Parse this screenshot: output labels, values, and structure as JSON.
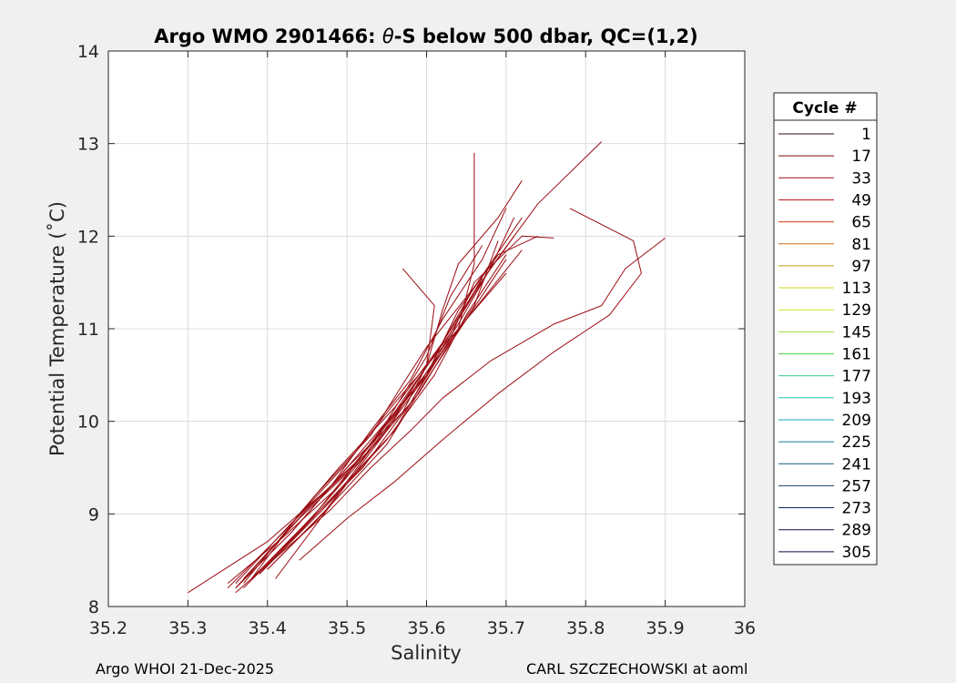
{
  "chart_data": {
    "type": "line",
    "title_prefix": "Argo WMO 2901466: ",
    "title_symbol": "θ",
    "title_suffix": "-S below 500 dbar,  QC=(1,2)",
    "xlabel": "Salinity",
    "ylabel": "Potential Temperature (˚C)",
    "xlim": [
      35.2,
      36.0
    ],
    "ylim": [
      8,
      14
    ],
    "x_ticks": [
      "35.2",
      "35.3",
      "35.4",
      "35.5",
      "35.6",
      "35.7",
      "35.8",
      "35.9",
      "36"
    ],
    "y_ticks": [
      "8",
      "9",
      "10",
      "11",
      "12",
      "13",
      "14"
    ],
    "grid": true,
    "legend_title": "Cycle #",
    "legend_position": "outside-right",
    "legend": [
      {
        "label": "1",
        "color": "#300808"
      },
      {
        "label": "17",
        "color": "#7a0a10"
      },
      {
        "label": "33",
        "color": "#a00d13"
      },
      {
        "label": "49",
        "color": "#bf1a17"
      },
      {
        "label": "65",
        "color": "#d33a15"
      },
      {
        "label": "81",
        "color": "#d86a10"
      },
      {
        "label": "97",
        "color": "#c8a014"
      },
      {
        "label": "113",
        "color": "#d6d61c"
      },
      {
        "label": "129",
        "color": "#c8e628"
      },
      {
        "label": "145",
        "color": "#96e036"
      },
      {
        "label": "161",
        "color": "#58d64a"
      },
      {
        "label": "177",
        "color": "#2fd08a"
      },
      {
        "label": "193",
        "color": "#22c6b4"
      },
      {
        "label": "209",
        "color": "#19a8be"
      },
      {
        "label": "225",
        "color": "#157e9c"
      },
      {
        "label": "241",
        "color": "#145e80"
      },
      {
        "label": "257",
        "color": "#143e66"
      },
      {
        "label": "273",
        "color": "#12245a"
      },
      {
        "label": "289",
        "color": "#0c1450"
      },
      {
        "label": "305",
        "color": "#080c48"
      }
    ],
    "series": [
      {
        "name": "1",
        "color": "#300808",
        "x": [
          35.36,
          35.42,
          35.48,
          35.53,
          35.58,
          35.62,
          35.68,
          35.76,
          35.82,
          35.85,
          35.9
        ],
        "y": [
          8.15,
          8.6,
          9.05,
          9.5,
          9.9,
          10.25,
          10.65,
          11.05,
          11.25,
          11.65,
          11.98
        ]
      },
      {
        "name": "17",
        "color": "#7a0a10",
        "x": [
          35.44,
          35.5,
          35.56,
          35.62,
          35.69,
          35.76,
          35.83,
          35.87,
          35.86,
          35.78
        ],
        "y": [
          8.5,
          8.95,
          9.35,
          9.8,
          10.3,
          10.75,
          11.15,
          11.6,
          11.95,
          12.3
        ]
      },
      {
        "name": "33",
        "color": "#a00d13",
        "x": [
          35.37,
          35.44,
          35.5,
          35.56,
          35.6,
          35.64,
          35.68,
          35.74,
          35.82
        ],
        "y": [
          8.2,
          8.8,
          9.35,
          9.9,
          10.5,
          11.1,
          11.65,
          12.35,
          13.02
        ]
      },
      {
        "name": "49",
        "color": "#bf1a17",
        "x": [
          35.3,
          35.4,
          35.48,
          35.53,
          35.58,
          35.62,
          35.67,
          35.7
        ],
        "y": [
          8.15,
          8.7,
          9.3,
          9.9,
          10.45,
          11.1,
          11.75,
          12.3
        ]
      },
      {
        "name": "65",
        "color": "#d33a15",
        "x": [
          35.36,
          35.43,
          35.5,
          35.57,
          35.6,
          35.62,
          35.64,
          35.69,
          35.72
        ],
        "y": [
          8.2,
          8.8,
          9.5,
          10.1,
          10.6,
          11.2,
          11.7,
          12.2,
          12.6
        ]
      },
      {
        "name": "81",
        "color": "#d86a10",
        "x": [
          35.38,
          35.45,
          35.52,
          35.58,
          35.63,
          35.66,
          35.72,
          35.76
        ],
        "y": [
          8.3,
          8.9,
          9.5,
          10.2,
          10.9,
          11.5,
          12.0,
          11.98
        ]
      },
      {
        "name": "97",
        "color": "#c8a014",
        "x": [
          35.4,
          35.47,
          35.53,
          35.59,
          35.64,
          35.66,
          35.66
        ],
        "y": [
          8.4,
          9.0,
          9.7,
          10.3,
          11.0,
          11.7,
          12.9
        ]
      },
      {
        "name": "113",
        "color": "#d6d61c",
        "x": [
          35.41,
          35.48,
          35.55,
          35.6,
          35.61,
          35.57
        ],
        "y": [
          8.3,
          9.1,
          9.9,
          10.6,
          11.25,
          11.65
        ]
      },
      {
        "name": "129",
        "color": "#c8e628",
        "x": [
          35.35,
          35.42,
          35.49,
          35.55,
          35.6,
          35.64,
          35.69,
          35.74
        ],
        "y": [
          8.25,
          8.75,
          9.3,
          10.0,
          10.5,
          11.2,
          11.8,
          12.0
        ]
      },
      {
        "name": "145",
        "color": "#96e036",
        "x": [
          35.36,
          35.43,
          35.49,
          35.55,
          35.6,
          35.63,
          35.67
        ],
        "y": [
          8.2,
          8.8,
          9.4,
          10.0,
          10.7,
          11.35,
          11.9
        ]
      },
      {
        "name": "161",
        "color": "#58d64a",
        "x": [
          35.38,
          35.44,
          35.49,
          35.56,
          35.62,
          35.66,
          35.71
        ],
        "y": [
          8.3,
          9.0,
          9.5,
          10.15,
          10.85,
          11.4,
          12.0
        ]
      },
      {
        "name": "177",
        "color": "#2fd08a",
        "x": [
          35.37,
          35.46,
          35.53,
          35.57,
          35.6,
          35.66,
          35.72
        ],
        "y": [
          8.25,
          9.2,
          9.85,
          10.4,
          10.8,
          11.45,
          12.2
        ]
      },
      {
        "name": "193",
        "color": "#22c6b4",
        "x": [
          35.35,
          35.42,
          35.5,
          35.56,
          35.63,
          35.7
        ],
        "y": [
          8.2,
          8.8,
          9.55,
          10.2,
          10.9,
          11.6
        ]
      },
      {
        "name": "209",
        "color": "#19a8be",
        "x": [
          35.4,
          35.48,
          35.55,
          35.6,
          35.65,
          35.72
        ],
        "y": [
          8.4,
          9.1,
          9.75,
          10.45,
          11.1,
          11.85
        ]
      },
      {
        "name": "225",
        "color": "#157e9c",
        "x": [
          35.37,
          35.45,
          35.53,
          35.58,
          35.65,
          35.7
        ],
        "y": [
          8.3,
          9.05,
          9.7,
          10.3,
          11.1,
          11.75
        ]
      },
      {
        "name": "241",
        "color": "#145e80",
        "x": [
          35.39,
          35.47,
          35.54,
          35.6,
          35.66,
          35.69
        ],
        "y": [
          8.35,
          9.1,
          9.8,
          10.5,
          11.25,
          11.95
        ]
      },
      {
        "name": "257",
        "color": "#143e66",
        "x": [
          35.36,
          35.44,
          35.52,
          35.58,
          35.63,
          35.67
        ],
        "y": [
          8.2,
          8.95,
          9.6,
          10.35,
          10.95,
          11.55
        ]
      },
      {
        "name": "273",
        "color": "#12245a",
        "x": [
          35.38,
          35.46,
          35.53,
          35.59,
          35.64,
          35.68,
          35.71
        ],
        "y": [
          8.3,
          9.0,
          9.75,
          10.4,
          11.05,
          11.65,
          12.2
        ]
      },
      {
        "name": "289",
        "color": "#0c1450",
        "x": [
          35.36,
          35.43,
          35.51,
          35.57,
          35.62,
          35.66
        ],
        "y": [
          8.25,
          8.9,
          9.55,
          10.2,
          10.85,
          11.45
        ]
      },
      {
        "name": "305",
        "color": "#080c48",
        "x": [
          35.39,
          35.47,
          35.55,
          35.61,
          35.65,
          35.7
        ],
        "y": [
          8.35,
          9.05,
          9.8,
          10.5,
          11.15,
          11.8
        ]
      }
    ]
  },
  "footer": {
    "left": "Argo WHOI 21-Dec-2025",
    "right": "CARL SZCZECHOWSKI at aoml"
  }
}
